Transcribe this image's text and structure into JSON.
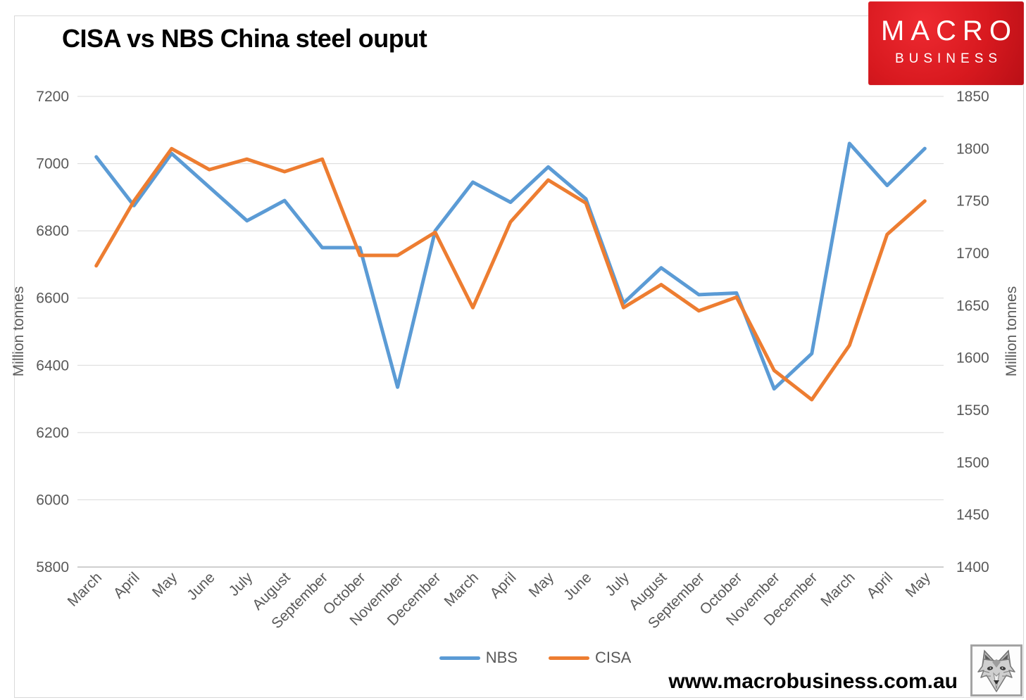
{
  "header": {
    "title": "CISA vs NBS China steel ouput"
  },
  "logo": {
    "line1": "MACRO",
    "line2": "BUSINESS"
  },
  "footer": {
    "url": "www.macrobusiness.com.au"
  },
  "chart_data": {
    "type": "line",
    "title": "CISA vs NBS China steel ouput",
    "categories": [
      "March",
      "April",
      "May",
      "June",
      "July",
      "August",
      "September",
      "October",
      "November",
      "December",
      "March",
      "April",
      "May",
      "June",
      "July",
      "August",
      "September",
      "October",
      "November",
      "December",
      "March",
      "April",
      "May"
    ],
    "series": [
      {
        "name": "NBS",
        "axis": "left",
        "color": "#5B9BD5",
        "values": [
          7020,
          6875,
          7030,
          6930,
          6830,
          6890,
          6750,
          6750,
          6335,
          6800,
          6945,
          6885,
          6990,
          6895,
          6585,
          6690,
          6610,
          6615,
          6330,
          6435,
          7060,
          6935,
          7045
        ]
      },
      {
        "name": "CISA",
        "axis": "right",
        "color": "#ED7D31",
        "values": [
          1688,
          1750,
          1800,
          1780,
          1790,
          1778,
          1790,
          1698,
          1698,
          1720,
          1648,
          1730,
          1770,
          1748,
          1648,
          1670,
          1645,
          1658,
          1588,
          1560,
          1612,
          1718,
          1750
        ]
      }
    ],
    "left_axis": {
      "title": "Million tonnes",
      "min": 5800,
      "max": 7200,
      "step": 200,
      "ticks": [
        7200,
        7000,
        6800,
        6600,
        6400,
        6200,
        6000,
        5800
      ]
    },
    "right_axis": {
      "title": "Million tonnes",
      "min": 1400,
      "max": 1850,
      "step": 50,
      "ticks": [
        1850,
        1800,
        1750,
        1700,
        1650,
        1600,
        1550,
        1500,
        1450,
        1400
      ]
    },
    "legend": {
      "position": "bottom",
      "entries": [
        "NBS",
        "CISA"
      ]
    },
    "grid": "horizontal",
    "x_label_rotation": -45,
    "colors": {
      "grid": "#d9d9d9",
      "axis_line": "#bfbfbf",
      "tick_text": "#595959"
    }
  }
}
